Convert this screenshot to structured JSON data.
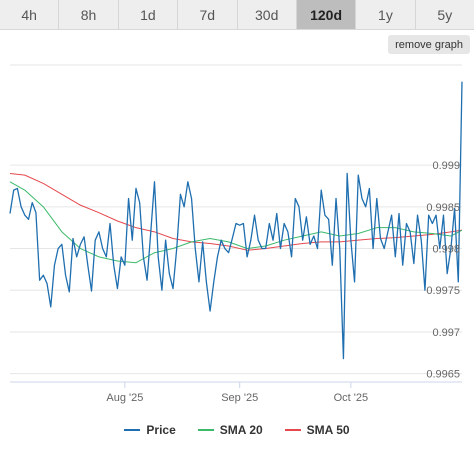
{
  "tabs": [
    {
      "label": "4h"
    },
    {
      "label": "8h"
    },
    {
      "label": "1d"
    },
    {
      "label": "7d"
    },
    {
      "label": "30d"
    },
    {
      "label": "120d"
    },
    {
      "label": "1y"
    },
    {
      "label": "5y"
    }
  ],
  "active_tab": "120d",
  "remove_button": {
    "label": "remove graph"
  },
  "chart_data": {
    "type": "line",
    "title": "",
    "xlabel": "",
    "ylabel": "",
    "y_axis_position": "right",
    "grid": "horizontal",
    "legend_position": "bottom-center",
    "ylim": [
      0.9964,
      1.0002
    ],
    "y_ticks": [
      0.9965,
      0.997,
      0.9975,
      0.998,
      0.9985,
      0.999
    ],
    "y_tick_labels": [
      "0.9965",
      "0.997",
      "0.9975",
      "0.998",
      "0.9985",
      "0.999"
    ],
    "x_range": [
      "2025-07-01",
      "2025-10-31"
    ],
    "x_ticks": [
      {
        "date": "2025-08-01",
        "label": "Aug '25"
      },
      {
        "date": "2025-09-01",
        "label": "Sep '25"
      },
      {
        "date": "2025-10-01",
        "label": "Oct '25"
      }
    ],
    "series": [
      {
        "name": "Price",
        "color": "#1f6fb0",
        "points": [
          [
            "2025-07-01",
            0.99842
          ],
          [
            "2025-07-02",
            0.9987
          ],
          [
            "2025-07-03",
            0.99872
          ],
          [
            "2025-07-04",
            0.9985
          ],
          [
            "2025-07-05",
            0.9984
          ],
          [
            "2025-07-06",
            0.99835
          ],
          [
            "2025-07-07",
            0.99855
          ],
          [
            "2025-07-08",
            0.99843
          ],
          [
            "2025-07-09",
            0.99762
          ],
          [
            "2025-07-10",
            0.99768
          ],
          [
            "2025-07-11",
            0.99758
          ],
          [
            "2025-07-12",
            0.9973
          ],
          [
            "2025-07-13",
            0.9978
          ],
          [
            "2025-07-14",
            0.998
          ],
          [
            "2025-07-15",
            0.99805
          ],
          [
            "2025-07-16",
            0.99768
          ],
          [
            "2025-07-17",
            0.99748
          ],
          [
            "2025-07-18",
            0.99812
          ],
          [
            "2025-07-19",
            0.9979
          ],
          [
            "2025-07-20",
            0.99805
          ],
          [
            "2025-07-21",
            0.99814
          ],
          [
            "2025-07-22",
            0.9978
          ],
          [
            "2025-07-23",
            0.99749
          ],
          [
            "2025-07-24",
            0.9981
          ],
          [
            "2025-07-25",
            0.9982
          ],
          [
            "2025-07-26",
            0.998
          ],
          [
            "2025-07-27",
            0.9979
          ],
          [
            "2025-07-28",
            0.9983
          ],
          [
            "2025-07-29",
            0.9978
          ],
          [
            "2025-07-30",
            0.99752
          ],
          [
            "2025-07-31",
            0.9979
          ],
          [
            "2025-08-01",
            0.9978
          ],
          [
            "2025-08-02",
            0.9986
          ],
          [
            "2025-08-03",
            0.9981
          ],
          [
            "2025-08-04",
            0.99872
          ],
          [
            "2025-08-05",
            0.99855
          ],
          [
            "2025-08-06",
            0.9979
          ],
          [
            "2025-08-07",
            0.99762
          ],
          [
            "2025-08-08",
            0.9982
          ],
          [
            "2025-08-09",
            0.9988
          ],
          [
            "2025-08-10",
            0.9979
          ],
          [
            "2025-08-11",
            0.9975
          ],
          [
            "2025-08-12",
            0.9981
          ],
          [
            "2025-08-13",
            0.9977
          ],
          [
            "2025-08-14",
            0.99752
          ],
          [
            "2025-08-15",
            0.998
          ],
          [
            "2025-08-16",
            0.99865
          ],
          [
            "2025-08-17",
            0.9985
          ],
          [
            "2025-08-18",
            0.9988
          ],
          [
            "2025-08-19",
            0.9986
          ],
          [
            "2025-08-20",
            0.998
          ],
          [
            "2025-08-21",
            0.9976
          ],
          [
            "2025-08-22",
            0.99808
          ],
          [
            "2025-08-23",
            0.9976
          ],
          [
            "2025-08-24",
            0.99725
          ],
          [
            "2025-08-25",
            0.9976
          ],
          [
            "2025-08-26",
            0.9979
          ],
          [
            "2025-08-27",
            0.9981
          ],
          [
            "2025-08-28",
            0.998
          ],
          [
            "2025-08-29",
            0.99795
          ],
          [
            "2025-08-30",
            0.99812
          ],
          [
            "2025-08-31",
            0.9983
          ],
          [
            "2025-09-01",
            0.99828
          ],
          [
            "2025-09-02",
            0.9983
          ],
          [
            "2025-09-03",
            0.9979
          ],
          [
            "2025-09-04",
            0.9981
          ],
          [
            "2025-09-05",
            0.9984
          ],
          [
            "2025-09-06",
            0.9981
          ],
          [
            "2025-09-07",
            0.998
          ],
          [
            "2025-09-08",
            0.998
          ],
          [
            "2025-09-09",
            0.9983
          ],
          [
            "2025-09-10",
            0.9981
          ],
          [
            "2025-09-11",
            0.99842
          ],
          [
            "2025-09-12",
            0.998
          ],
          [
            "2025-09-13",
            0.9983
          ],
          [
            "2025-09-14",
            0.9982
          ],
          [
            "2025-09-15",
            0.9979
          ],
          [
            "2025-09-16",
            0.9986
          ],
          [
            "2025-09-17",
            0.9985
          ],
          [
            "2025-09-18",
            0.9981
          ],
          [
            "2025-09-19",
            0.99838
          ],
          [
            "2025-09-20",
            0.99805
          ],
          [
            "2025-09-21",
            0.99815
          ],
          [
            "2025-09-22",
            0.998
          ],
          [
            "2025-09-23",
            0.9987
          ],
          [
            "2025-09-24",
            0.9984
          ],
          [
            "2025-09-25",
            0.99835
          ],
          [
            "2025-09-26",
            0.9978
          ],
          [
            "2025-09-27",
            0.9986
          ],
          [
            "2025-09-28",
            0.998
          ],
          [
            "2025-09-29",
            0.99668
          ],
          [
            "2025-09-30",
            0.9989
          ],
          [
            "2025-10-01",
            0.9981
          ],
          [
            "2025-10-02",
            0.9976
          ],
          [
            "2025-10-03",
            0.99888
          ],
          [
            "2025-10-04",
            0.9986
          ],
          [
            "2025-10-05",
            0.9985
          ],
          [
            "2025-10-06",
            0.99872
          ],
          [
            "2025-10-07",
            0.998
          ],
          [
            "2025-10-08",
            0.9986
          ],
          [
            "2025-10-09",
            0.99812
          ],
          [
            "2025-10-10",
            0.998
          ],
          [
            "2025-10-11",
            0.9982
          ],
          [
            "2025-10-12",
            0.9984
          ],
          [
            "2025-10-13",
            0.9979
          ],
          [
            "2025-10-14",
            0.99842
          ],
          [
            "2025-10-15",
            0.9978
          ],
          [
            "2025-10-16",
            0.9983
          ],
          [
            "2025-10-17",
            0.9982
          ],
          [
            "2025-10-18",
            0.99782
          ],
          [
            "2025-10-19",
            0.9984
          ],
          [
            "2025-10-20",
            0.9981
          ],
          [
            "2025-10-21",
            0.9975
          ],
          [
            "2025-10-22",
            0.9984
          ],
          [
            "2025-10-23",
            0.9983
          ],
          [
            "2025-10-24",
            0.9984
          ],
          [
            "2025-10-25",
            0.998
          ],
          [
            "2025-10-26",
            0.9984
          ],
          [
            "2025-10-27",
            0.9977
          ],
          [
            "2025-10-28",
            0.998
          ],
          [
            "2025-10-29",
            0.99848
          ],
          [
            "2025-10-30",
            0.9976
          ],
          [
            "2025-10-31",
            1.0
          ]
        ]
      },
      {
        "name": "SMA 20",
        "color": "#3cba6a",
        "points": [
          [
            "2025-07-01",
            0.9988
          ],
          [
            "2025-07-05",
            0.9987
          ],
          [
            "2025-07-10",
            0.9985
          ],
          [
            "2025-07-15",
            0.9982
          ],
          [
            "2025-07-20",
            0.998
          ],
          [
            "2025-07-25",
            0.9979
          ],
          [
            "2025-07-30",
            0.99785
          ],
          [
            "2025-08-04",
            0.99783
          ],
          [
            "2025-08-09",
            0.99795
          ],
          [
            "2025-08-14",
            0.998
          ],
          [
            "2025-08-19",
            0.99808
          ],
          [
            "2025-08-24",
            0.99812
          ],
          [
            "2025-08-29",
            0.99808
          ],
          [
            "2025-09-03",
            0.998
          ],
          [
            "2025-09-08",
            0.99803
          ],
          [
            "2025-09-13",
            0.9981
          ],
          [
            "2025-09-18",
            0.99815
          ],
          [
            "2025-09-23",
            0.9982
          ],
          [
            "2025-09-28",
            0.99815
          ],
          [
            "2025-10-03",
            0.99818
          ],
          [
            "2025-10-08",
            0.99825
          ],
          [
            "2025-10-13",
            0.99825
          ],
          [
            "2025-10-18",
            0.9982
          ],
          [
            "2025-10-23",
            0.99818
          ],
          [
            "2025-10-28",
            0.99815
          ],
          [
            "2025-10-31",
            0.99822
          ]
        ]
      },
      {
        "name": "SMA 50",
        "color": "#e5494e",
        "points": [
          [
            "2025-07-01",
            0.9989
          ],
          [
            "2025-07-05",
            0.99888
          ],
          [
            "2025-07-10",
            0.99878
          ],
          [
            "2025-07-15",
            0.99865
          ],
          [
            "2025-07-20",
            0.99852
          ],
          [
            "2025-07-25",
            0.99843
          ],
          [
            "2025-07-30",
            0.99833
          ],
          [
            "2025-08-04",
            0.99825
          ],
          [
            "2025-08-09",
            0.9982
          ],
          [
            "2025-08-14",
            0.99812
          ],
          [
            "2025-08-19",
            0.99808
          ],
          [
            "2025-08-24",
            0.99806
          ],
          [
            "2025-08-29",
            0.99803
          ],
          [
            "2025-09-03",
            0.99798
          ],
          [
            "2025-09-08",
            0.998
          ],
          [
            "2025-09-13",
            0.99803
          ],
          [
            "2025-09-18",
            0.99806
          ],
          [
            "2025-09-23",
            0.99808
          ],
          [
            "2025-09-28",
            0.99808
          ],
          [
            "2025-10-03",
            0.9981
          ],
          [
            "2025-10-08",
            0.99812
          ],
          [
            "2025-10-13",
            0.99813
          ],
          [
            "2025-10-18",
            0.99815
          ],
          [
            "2025-10-23",
            0.99817
          ],
          [
            "2025-10-28",
            0.9982
          ],
          [
            "2025-10-31",
            0.99822
          ]
        ]
      }
    ]
  }
}
